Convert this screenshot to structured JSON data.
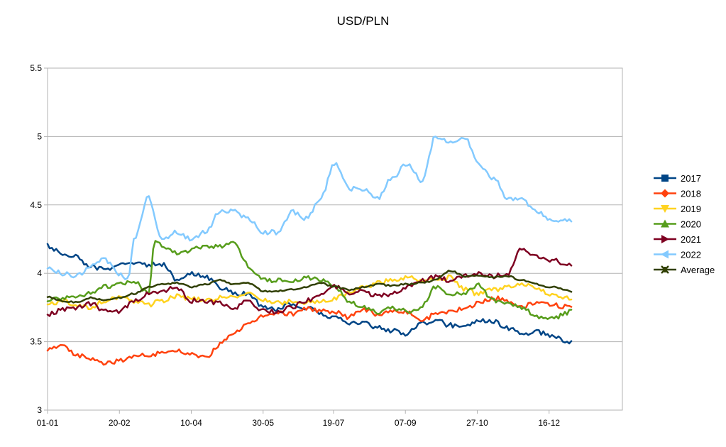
{
  "chart_data": {
    "type": "line",
    "title": "USD/PLN",
    "xlabel": "",
    "ylabel": "",
    "x_tick_labels": [
      "01-01",
      "20-02",
      "10-04",
      "30-05",
      "19-07",
      "07-09",
      "27-10",
      "16-12"
    ],
    "x_tick_days": [
      0,
      50,
      100,
      150,
      199,
      249,
      299,
      349
    ],
    "ylim": [
      3,
      5.5
    ],
    "y_ticks": [
      3,
      3.5,
      4,
      4.5,
      5,
      5.5
    ],
    "y_tick_labels": [
      "3",
      "3.5",
      "4",
      "4.5",
      "5",
      "5.5"
    ],
    "grid": true,
    "legend": "right",
    "series": [
      {
        "name": "2017",
        "color": "#004586",
        "marker": "square",
        "x": [
          0,
          10,
          20,
          30,
          40,
          50,
          60,
          70,
          80,
          90,
          100,
          110,
          120,
          130,
          140,
          150,
          160,
          170,
          180,
          190,
          200,
          210,
          220,
          230,
          240,
          250,
          260,
          270,
          280,
          290,
          300,
          310,
          320,
          330,
          340,
          350,
          365
        ],
        "y": [
          4.2,
          4.15,
          4.12,
          4.05,
          4.03,
          4.07,
          4.08,
          4.06,
          4.07,
          3.95,
          4.0,
          3.97,
          3.9,
          3.85,
          3.85,
          3.75,
          3.73,
          3.78,
          3.75,
          3.7,
          3.67,
          3.64,
          3.64,
          3.6,
          3.58,
          3.56,
          3.63,
          3.66,
          3.62,
          3.62,
          3.65,
          3.65,
          3.6,
          3.55,
          3.57,
          3.55,
          3.49
        ]
      },
      {
        "name": "2018",
        "color": "#ff420e",
        "marker": "diamond",
        "x": [
          0,
          10,
          20,
          30,
          40,
          50,
          60,
          70,
          80,
          90,
          100,
          110,
          120,
          130,
          140,
          150,
          160,
          170,
          180,
          190,
          200,
          210,
          220,
          230,
          240,
          250,
          260,
          270,
          280,
          290,
          300,
          310,
          320,
          330,
          340,
          350,
          365
        ],
        "y": [
          3.45,
          3.48,
          3.4,
          3.38,
          3.34,
          3.36,
          3.4,
          3.4,
          3.42,
          3.43,
          3.42,
          3.38,
          3.48,
          3.57,
          3.63,
          3.68,
          3.72,
          3.7,
          3.75,
          3.72,
          3.72,
          3.68,
          3.74,
          3.7,
          3.73,
          3.72,
          3.65,
          3.7,
          3.72,
          3.74,
          3.78,
          3.82,
          3.8,
          3.76,
          3.78,
          3.77,
          3.75
        ]
      },
      {
        "name": "2019",
        "color": "#ffd320",
        "marker": "triangle-down",
        "x": [
          0,
          10,
          20,
          30,
          40,
          50,
          60,
          70,
          80,
          90,
          100,
          110,
          120,
          130,
          140,
          150,
          160,
          170,
          180,
          190,
          200,
          210,
          220,
          230,
          240,
          250,
          260,
          270,
          280,
          290,
          300,
          310,
          320,
          330,
          340,
          350,
          365
        ],
        "y": [
          3.77,
          3.8,
          3.77,
          3.75,
          3.8,
          3.83,
          3.8,
          3.77,
          3.8,
          3.83,
          3.82,
          3.8,
          3.82,
          3.83,
          3.85,
          3.8,
          3.78,
          3.8,
          3.79,
          3.79,
          3.82,
          3.85,
          3.9,
          3.93,
          3.95,
          3.97,
          3.95,
          3.95,
          3.97,
          3.88,
          3.85,
          3.88,
          3.9,
          3.93,
          3.88,
          3.85,
          3.81
        ]
      },
      {
        "name": "2020",
        "color": "#579d1c",
        "marker": "triangle-up",
        "x": [
          0,
          10,
          20,
          30,
          40,
          50,
          60,
          70,
          75,
          80,
          90,
          100,
          110,
          120,
          130,
          140,
          150,
          160,
          170,
          180,
          190,
          200,
          210,
          220,
          230,
          240,
          250,
          260,
          270,
          280,
          290,
          300,
          310,
          320,
          330,
          340,
          350,
          365
        ],
        "y": [
          3.8,
          3.82,
          3.83,
          3.85,
          3.9,
          3.92,
          3.95,
          3.85,
          4.25,
          4.2,
          4.15,
          4.17,
          4.2,
          4.2,
          4.22,
          4.05,
          3.95,
          3.95,
          3.95,
          3.97,
          3.95,
          3.9,
          3.8,
          3.75,
          3.72,
          3.75,
          3.72,
          3.75,
          3.9,
          3.85,
          3.85,
          3.92,
          3.8,
          3.78,
          3.75,
          3.68,
          3.67,
          3.72
        ]
      },
      {
        "name": "2021",
        "color": "#7e0021",
        "marker": "triangle-right",
        "x": [
          0,
          10,
          20,
          30,
          40,
          50,
          60,
          70,
          80,
          90,
          100,
          110,
          120,
          130,
          140,
          150,
          160,
          170,
          180,
          190,
          200,
          210,
          220,
          230,
          240,
          250,
          260,
          270,
          280,
          290,
          300,
          310,
          320,
          330,
          340,
          350,
          365
        ],
        "y": [
          3.7,
          3.73,
          3.75,
          3.78,
          3.72,
          3.72,
          3.8,
          3.85,
          3.87,
          3.9,
          3.8,
          3.8,
          3.78,
          3.75,
          3.8,
          3.73,
          3.72,
          3.75,
          3.8,
          3.85,
          3.9,
          3.85,
          3.87,
          3.83,
          3.85,
          3.9,
          3.95,
          3.97,
          3.95,
          3.98,
          4.0,
          3.98,
          4.0,
          4.18,
          4.12,
          4.1,
          4.06
        ]
      },
      {
        "name": "2022",
        "color": "#83caff",
        "marker": "triangle-left",
        "x": [
          0,
          10,
          20,
          30,
          40,
          50,
          56,
          60,
          70,
          80,
          90,
          100,
          110,
          120,
          130,
          140,
          150,
          160,
          170,
          180,
          190,
          200,
          210,
          220,
          230,
          240,
          250,
          256,
          260,
          270,
          280,
          290,
          300,
          310,
          320,
          330,
          340,
          350,
          365
        ],
        "y": [
          4.03,
          4.0,
          3.98,
          4.05,
          4.1,
          4.0,
          3.95,
          4.25,
          4.55,
          4.25,
          4.3,
          4.25,
          4.3,
          4.45,
          4.45,
          4.4,
          4.3,
          4.3,
          4.45,
          4.4,
          4.55,
          4.8,
          4.62,
          4.62,
          4.55,
          4.7,
          4.8,
          4.75,
          4.65,
          5.0,
          4.95,
          5.0,
          4.8,
          4.7,
          4.55,
          4.55,
          4.45,
          4.4,
          4.38
        ]
      },
      {
        "name": "Average",
        "color": "#314004",
        "marker": "cross",
        "x": [
          0,
          10,
          20,
          30,
          40,
          50,
          60,
          70,
          80,
          90,
          100,
          110,
          120,
          130,
          140,
          150,
          160,
          170,
          180,
          190,
          200,
          210,
          220,
          230,
          240,
          250,
          260,
          270,
          280,
          290,
          300,
          310,
          320,
          330,
          340,
          350,
          365
        ],
        "y": [
          3.83,
          3.8,
          3.79,
          3.82,
          3.8,
          3.82,
          3.85,
          3.9,
          3.92,
          3.93,
          3.9,
          3.92,
          3.95,
          3.92,
          3.93,
          3.87,
          3.87,
          3.88,
          3.9,
          3.93,
          3.9,
          3.88,
          3.9,
          3.92,
          3.91,
          3.92,
          3.93,
          3.95,
          4.02,
          3.98,
          3.98,
          3.97,
          3.98,
          3.95,
          3.92,
          3.9,
          3.87
        ]
      }
    ]
  }
}
